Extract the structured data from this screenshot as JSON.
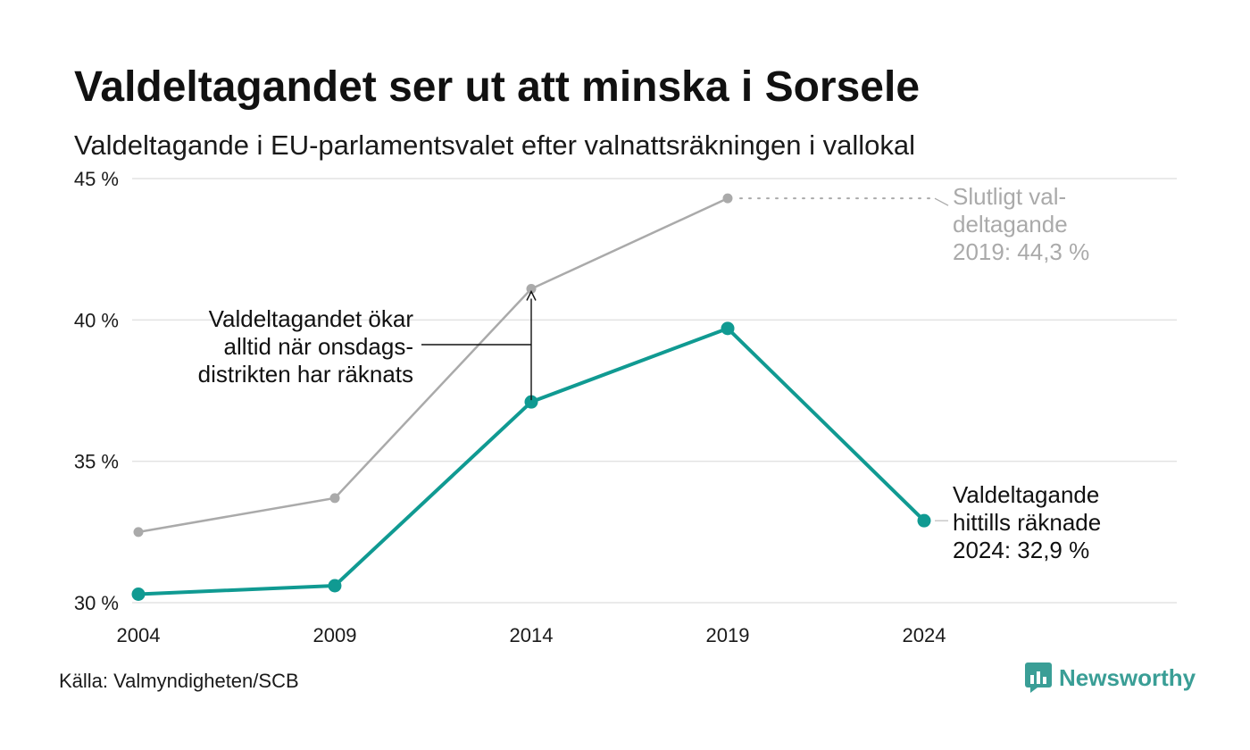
{
  "header": {
    "title": "Valdeltagandet ser ut att minska i Sorsele",
    "subtitle": "Valdeltagande i EU-parlamentsvalet efter valnattsräkningen i vallokal"
  },
  "footer": {
    "source": "Källa: Valmyndigheten/SCB",
    "brand": "Newsworthy",
    "brand_icon": "newsworthy-logo-icon"
  },
  "colors": {
    "counted": "#109a92",
    "final": "#aaaaaa",
    "grid": "#e3e3e3",
    "brand": "#3a9e96"
  },
  "chart_data": {
    "type": "line",
    "x": [
      2004,
      2009,
      2014,
      2019,
      2024
    ],
    "ylim": [
      30,
      45
    ],
    "yticks": [
      30,
      35,
      40,
      45
    ],
    "ytick_labels": [
      "30 %",
      "35 %",
      "40 %",
      "45 %"
    ],
    "xtick_labels": [
      "2004",
      "2009",
      "2014",
      "2019",
      "2024"
    ],
    "grid": true,
    "series": [
      {
        "key": "final",
        "values": [
          32.5,
          33.7,
          41.1,
          44.3,
          null
        ]
      },
      {
        "key": "counted",
        "values": [
          30.3,
          30.6,
          37.1,
          39.7,
          32.9
        ]
      }
    ],
    "annotations": {
      "final_label": [
        "Slutligt val-",
        "deltagande",
        "2019: 44,3 %"
      ],
      "counted_label": [
        "Valdeltagande",
        "hittills räknade",
        "2024: 32,9 %"
      ],
      "increase_note": [
        "Valdeltagandet ökar",
        "alltid när onsdags-",
        "distrikten har räknats"
      ]
    }
  }
}
